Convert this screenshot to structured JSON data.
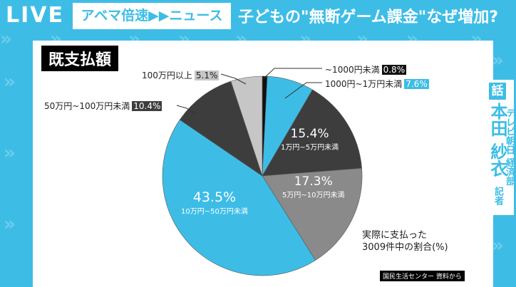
{
  "header": {
    "live": "LIVE",
    "brand": "アベマ倍速▶▶ニュース",
    "headline": "子どもの\"無断ゲーム課金\"なぜ増加?"
  },
  "speaker": {
    "badge": "話",
    "name": "本田 紗衣",
    "affiliation": "テレビ朝日 経済部",
    "role": "記者"
  },
  "chart_data": {
    "type": "pie",
    "title": "既支払額",
    "slices": [
      {
        "label": "~1000円未満",
        "value": 0.8,
        "display": "0.8%",
        "color": "#111111"
      },
      {
        "label": "1000円~1万円未満",
        "value": 7.6,
        "display": "7.6%",
        "color": "#3dbde6"
      },
      {
        "label": "1万円~5万円未満",
        "value": 15.4,
        "display": "15.4%",
        "color": "#3d3d3d"
      },
      {
        "label": "5万円~10万円未満",
        "value": 17.3,
        "display": "17.3%",
        "color": "#8a8a8a"
      },
      {
        "label": "10万円~50万円未満",
        "value": 43.5,
        "display": "43.5%",
        "color": "#3dbde6"
      },
      {
        "label": "50万円~100万円未満",
        "value": 10.4,
        "display": "10.4%",
        "color": "#3d3d3d"
      },
      {
        "label": "100万円以上",
        "value": 5.1,
        "display": "5.1%",
        "color": "#c6c6c6"
      }
    ],
    "note": [
      "実際に支払った",
      "3009件中の割合(%)"
    ],
    "source": "国民生活センター 資料から"
  }
}
